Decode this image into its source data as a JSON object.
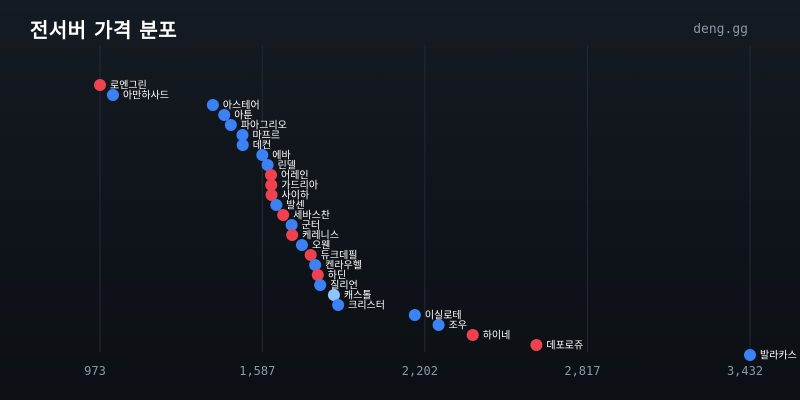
{
  "header": {
    "title": "전서버 가격 분포",
    "brand": "deng.gg"
  },
  "colors": {
    "background": "#11161c",
    "blue": "#3b82f6",
    "light_blue": "#8ec5ff",
    "red": "#f0414f",
    "grid": "#222a33",
    "tick_text": "#8d97a3",
    "label_text": "#ffffff"
  },
  "chart_data": {
    "type": "scatter",
    "title": "전서버 가격 분포",
    "x_ticks": [
      973,
      1587,
      2202,
      2817,
      3432
    ],
    "x_tick_labels": [
      "973",
      "1,587",
      "2,202",
      "2,817",
      "3,432"
    ],
    "xlim": [
      973,
      3432
    ],
    "grid": "vertical",
    "points": [
      {
        "name": "로엔그린",
        "value": 973,
        "color": "red"
      },
      {
        "name": "아만하사드",
        "value": 1022,
        "color": "blue"
      },
      {
        "name": "아스테어",
        "value": 1400,
        "color": "blue"
      },
      {
        "name": "아툰",
        "value": 1443,
        "color": "blue"
      },
      {
        "name": "파아그리오",
        "value": 1468,
        "color": "blue"
      },
      {
        "name": "마프르",
        "value": 1512,
        "color": "blue"
      },
      {
        "name": "데컨",
        "value": 1513,
        "color": "blue"
      },
      {
        "name": "에바",
        "value": 1587,
        "color": "blue"
      },
      {
        "name": "린델",
        "value": 1607,
        "color": "blue"
      },
      {
        "name": "어레인",
        "value": 1620,
        "color": "red"
      },
      {
        "name": "가드리아",
        "value": 1621,
        "color": "red"
      },
      {
        "name": "사이하",
        "value": 1622,
        "color": "red"
      },
      {
        "name": "발센",
        "value": 1640,
        "color": "blue"
      },
      {
        "name": "세바스찬",
        "value": 1666,
        "color": "red"
      },
      {
        "name": "군터",
        "value": 1698,
        "color": "blue"
      },
      {
        "name": "케레니스",
        "value": 1700,
        "color": "red"
      },
      {
        "name": "오웬",
        "value": 1737,
        "color": "blue"
      },
      {
        "name": "듀크데필",
        "value": 1770,
        "color": "red"
      },
      {
        "name": "켄라우헬",
        "value": 1787,
        "color": "blue"
      },
      {
        "name": "하딘",
        "value": 1797,
        "color": "red"
      },
      {
        "name": "질리언",
        "value": 1806,
        "color": "blue"
      },
      {
        "name": "캐스톨",
        "value": 1858,
        "color": "light_blue"
      },
      {
        "name": "크리스터",
        "value": 1874,
        "color": "blue"
      },
      {
        "name": "이실로테",
        "value": 2164,
        "color": "blue"
      },
      {
        "name": "조우",
        "value": 2254,
        "color": "blue"
      },
      {
        "name": "하이네",
        "value": 2383,
        "color": "red"
      },
      {
        "name": "데포로쥬",
        "value": 2624,
        "color": "red"
      },
      {
        "name": "발라카스",
        "value": 3432,
        "color": "blue"
      }
    ]
  }
}
